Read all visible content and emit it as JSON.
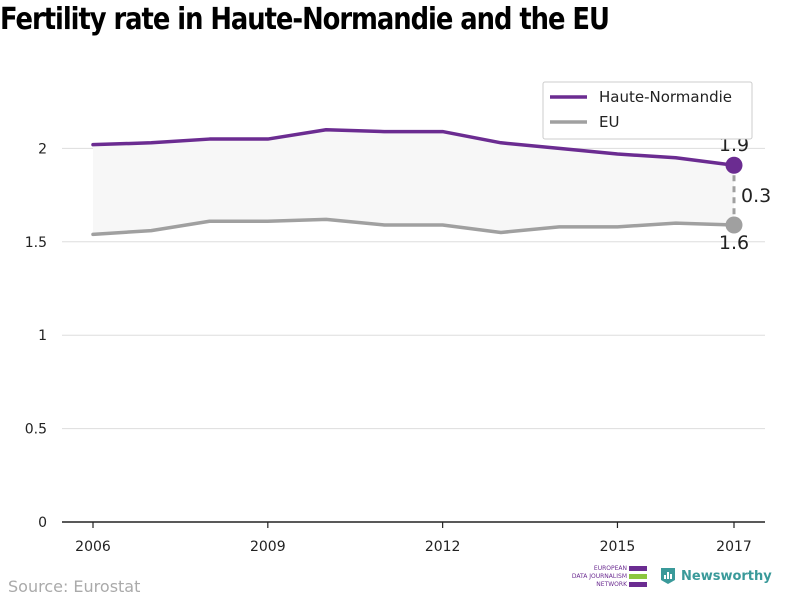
{
  "header": {
    "title": "Fertility rate in Haute-Normandie and the EU"
  },
  "footer": {
    "source": "Source: Eurostat",
    "edjn_lines": [
      "EUROPEAN",
      "DATA JOURNALISM",
      "NETWORK"
    ],
    "newsworthy": "Newsworthy"
  },
  "colors": {
    "region": "#6b2c91",
    "eu": "#a0a0a0",
    "band": "#f7f7f7",
    "grid": "#dddddd",
    "edjn_green": "#8cc63f",
    "newsworthy": "#3a9a9a"
  },
  "icons": [
    "edjn-logo-icon",
    "newsworthy-logo-icon"
  ],
  "chart_data": {
    "type": "line",
    "x": [
      2006,
      2007,
      2008,
      2009,
      2010,
      2011,
      2012,
      2013,
      2014,
      2015,
      2016,
      2017
    ],
    "series": [
      {
        "name": "Haute-Normandie",
        "values": [
          2.02,
          2.03,
          2.05,
          2.05,
          2.1,
          2.09,
          2.09,
          2.03,
          2.0,
          1.97,
          1.95,
          1.91
        ]
      },
      {
        "name": "EU",
        "values": [
          1.54,
          1.56,
          1.61,
          1.61,
          1.62,
          1.59,
          1.59,
          1.55,
          1.58,
          1.58,
          1.6,
          1.59
        ]
      }
    ],
    "ylim": [
      0,
      2.5
    ],
    "xlim": [
      2006,
      2017
    ],
    "yticks": [
      0,
      0.5,
      1,
      1.5,
      2
    ],
    "ytick_labels": [
      "0",
      "0.5",
      "1",
      "1.5",
      "2"
    ],
    "xticks": [
      2006,
      2009,
      2012,
      2015,
      2017
    ],
    "xtick_labels": [
      "2006",
      "2009",
      "2012",
      "2015",
      "2017"
    ],
    "end_labels": {
      "region": "1.9",
      "eu": "1.6",
      "gap": "0.3"
    },
    "grid": true,
    "legend": "top-right"
  }
}
